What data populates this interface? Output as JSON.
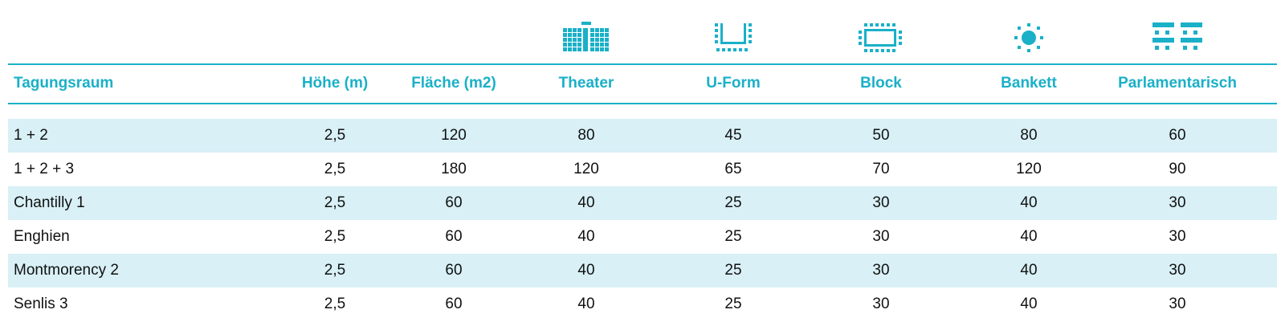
{
  "colors": {
    "accent": "#1ab0c8",
    "stripe": "#d8f0f6",
    "text": "#111111"
  },
  "icons": [
    "theater-seating-icon",
    "u-form-seating-icon",
    "block-seating-icon",
    "banquet-seating-icon",
    "parliamentary-seating-icon"
  ],
  "headers": {
    "room": "Tagungsraum",
    "height": "Höhe (m)",
    "area": "Fläche (m2)",
    "theater": "Theater",
    "uform": "U-Form",
    "block": "Block",
    "bankett": "Bankett",
    "parlamentarisch": "Parlamentarisch"
  },
  "rows": [
    {
      "room": "1 + 2",
      "height": "2,5",
      "area": "120",
      "theater": "80",
      "uform": "45",
      "block": "50",
      "bankett": "80",
      "parlamentarisch": "60"
    },
    {
      "room": "1 + 2 + 3",
      "height": "2,5",
      "area": "180",
      "theater": "120",
      "uform": "65",
      "block": "70",
      "bankett": "120",
      "parlamentarisch": "90"
    },
    {
      "room": "Chantilly 1",
      "height": "2,5",
      "area": "60",
      "theater": "40",
      "uform": "25",
      "block": "30",
      "bankett": "40",
      "parlamentarisch": "30"
    },
    {
      "room": "Enghien",
      "height": "2,5",
      "area": "60",
      "theater": "40",
      "uform": "25",
      "block": "30",
      "bankett": "40",
      "parlamentarisch": "30"
    },
    {
      "room": "Montmorency 2",
      "height": "2,5",
      "area": "60",
      "theater": "40",
      "uform": "25",
      "block": "30",
      "bankett": "40",
      "parlamentarisch": "30"
    },
    {
      "room": "Senlis 3",
      "height": "2,5",
      "area": "60",
      "theater": "40",
      "uform": "25",
      "block": "30",
      "bankett": "40",
      "parlamentarisch": "30"
    }
  ]
}
